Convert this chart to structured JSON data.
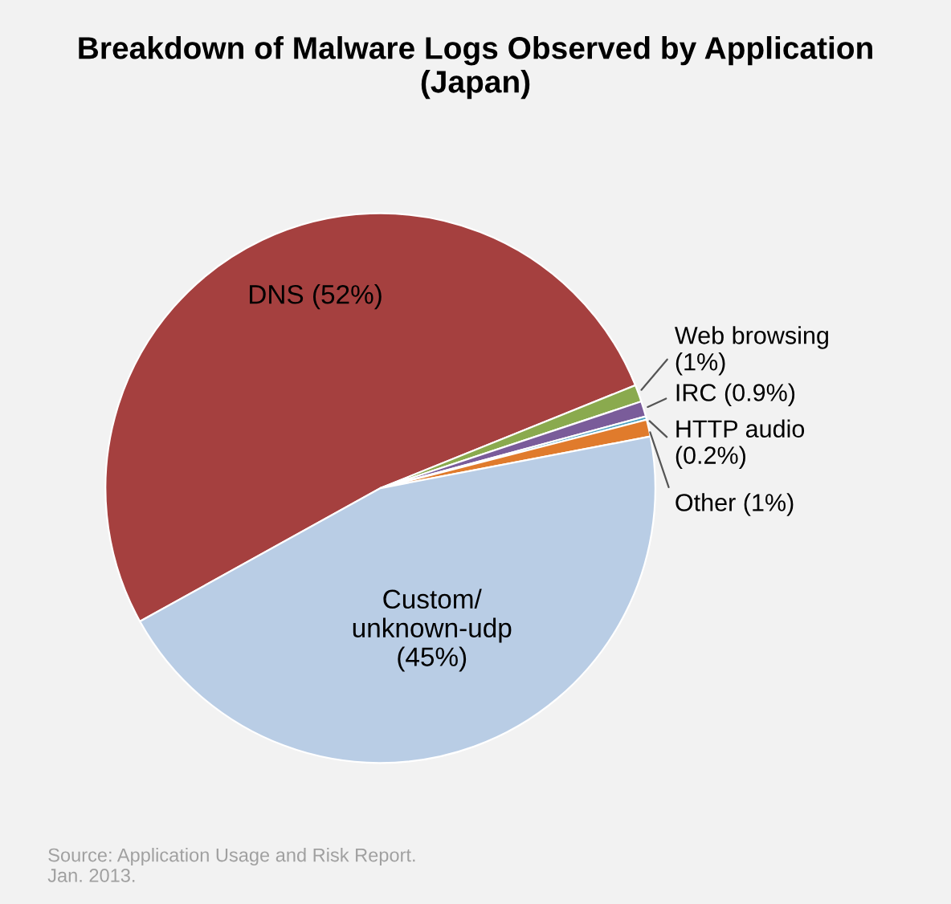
{
  "chart_data": {
    "type": "pie",
    "title": "Breakdown of Malware Logs Observed by Application\n(Japan)",
    "categories": [
      "DNS",
      "Web browsing",
      "IRC",
      "HTTP audio",
      "Other",
      "Custom/\nunknown-udp"
    ],
    "values": [
      52,
      1,
      0.9,
      0.2,
      1,
      45
    ],
    "value_labels": [
      "(52%)",
      "(1%)",
      "(0.9%)",
      "(0.2%)",
      "(1%)",
      "(45%)"
    ],
    "colors": [
      "#a5403f",
      "#8aaa4e",
      "#7a5c9a",
      "#4aa0c0",
      "#e07b2c",
      "#b9cde5"
    ],
    "annotations": [
      "Source: Application Usage and Risk Report.\nJan. 2013."
    ]
  }
}
